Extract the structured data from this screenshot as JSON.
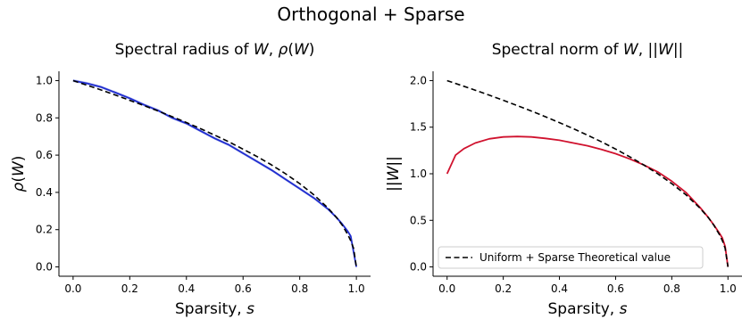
{
  "suptitle": "Orthogonal + Sparse",
  "chart_data": [
    {
      "type": "line",
      "title": "Spectral radius of W, ρ(W)",
      "xlabel": "Sparsity, s",
      "ylabel": "ρ(W)",
      "xlim": [
        -0.05,
        1.05
      ],
      "ylim": [
        -0.05,
        1.05
      ],
      "xticks": [
        0.0,
        0.2,
        0.4,
        0.6,
        0.8,
        1.0
      ],
      "xtick_labels": [
        "0.0",
        "0.2",
        "0.4",
        "0.6",
        "0.8",
        "1.0"
      ],
      "yticks": [
        0.0,
        0.2,
        0.4,
        0.6,
        0.8,
        1.0
      ],
      "ytick_labels": [
        "0.0",
        "0.2",
        "0.4",
        "0.6",
        "0.8",
        "1.0"
      ],
      "grid": false,
      "series": [
        {
          "style": "solid",
          "color": "#1f2ccf",
          "band_color": "#aab4ee",
          "x": [
            0,
            0.05,
            0.1,
            0.15,
            0.2,
            0.25,
            0.3,
            0.35,
            0.4,
            0.45,
            0.5,
            0.55,
            0.6,
            0.65,
            0.7,
            0.75,
            0.8,
            0.85,
            0.9,
            0.93,
            0.95,
            0.97,
            0.98,
            0.99,
            1.0
          ],
          "values": [
            1.0,
            0.985,
            0.965,
            0.935,
            0.905,
            0.87,
            0.84,
            0.8,
            0.77,
            0.73,
            0.69,
            0.655,
            0.61,
            0.565,
            0.52,
            0.47,
            0.42,
            0.37,
            0.31,
            0.265,
            0.23,
            0.19,
            0.165,
            0.08,
            0.0
          ]
        },
        {
          "style": "dashed",
          "color": "#000000",
          "x": [
            0,
            0.05,
            0.1,
            0.15,
            0.2,
            0.25,
            0.3,
            0.35,
            0.4,
            0.45,
            0.5,
            0.55,
            0.6,
            0.65,
            0.7,
            0.75,
            0.8,
            0.85,
            0.9,
            0.93,
            0.95,
            0.97,
            0.98,
            0.99,
            1.0
          ],
          "values": [
            1.0,
            0.975,
            0.949,
            0.922,
            0.894,
            0.866,
            0.837,
            0.806,
            0.775,
            0.742,
            0.707,
            0.671,
            0.632,
            0.592,
            0.548,
            0.5,
            0.447,
            0.387,
            0.316,
            0.265,
            0.224,
            0.173,
            0.141,
            0.1,
            0.0
          ]
        }
      ]
    },
    {
      "type": "line",
      "title": "Spectral norm of W, ||W||",
      "xlabel": "Sparsity, s",
      "ylabel": "||W||",
      "xlim": [
        -0.05,
        1.05
      ],
      "ylim": [
        -0.1,
        2.1
      ],
      "xticks": [
        0.0,
        0.2,
        0.4,
        0.6,
        0.8,
        1.0
      ],
      "xtick_labels": [
        "0.0",
        "0.2",
        "0.4",
        "0.6",
        "0.8",
        "1.0"
      ],
      "yticks": [
        0.0,
        0.5,
        1.0,
        1.5,
        2.0
      ],
      "ytick_labels": [
        "0.0",
        "0.5",
        "1.0",
        "1.5",
        "2.0"
      ],
      "grid": false,
      "legend": {
        "position": "lower-left",
        "entries": [
          "Uniform + Sparse Theoretical value"
        ]
      },
      "series": [
        {
          "style": "solid",
          "color": "#d0122e",
          "x": [
            0,
            0.03,
            0.06,
            0.1,
            0.15,
            0.2,
            0.25,
            0.3,
            0.35,
            0.4,
            0.45,
            0.5,
            0.55,
            0.6,
            0.65,
            0.7,
            0.75,
            0.8,
            0.85,
            0.9,
            0.93,
            0.95,
            0.97,
            0.98,
            0.99,
            1.0
          ],
          "values": [
            1.0,
            1.2,
            1.27,
            1.33,
            1.375,
            1.395,
            1.4,
            1.395,
            1.38,
            1.36,
            1.33,
            1.3,
            1.26,
            1.215,
            1.16,
            1.095,
            1.02,
            0.92,
            0.8,
            0.64,
            0.53,
            0.45,
            0.36,
            0.31,
            0.22,
            0.0
          ]
        },
        {
          "name": "Uniform + Sparse Theoretical value",
          "style": "dashed",
          "color": "#000000",
          "x": [
            0,
            0.05,
            0.1,
            0.15,
            0.2,
            0.25,
            0.3,
            0.35,
            0.4,
            0.45,
            0.5,
            0.55,
            0.6,
            0.65,
            0.7,
            0.75,
            0.8,
            0.85,
            0.9,
            0.93,
            0.95,
            0.97,
            0.98,
            0.99,
            1.0
          ],
          "values": [
            2.0,
            1.949,
            1.897,
            1.844,
            1.789,
            1.732,
            1.673,
            1.612,
            1.549,
            1.483,
            1.414,
            1.342,
            1.265,
            1.183,
            1.095,
            1.0,
            0.894,
            0.775,
            0.632,
            0.529,
            0.447,
            0.346,
            0.283,
            0.2,
            0.0
          ]
        }
      ]
    }
  ]
}
